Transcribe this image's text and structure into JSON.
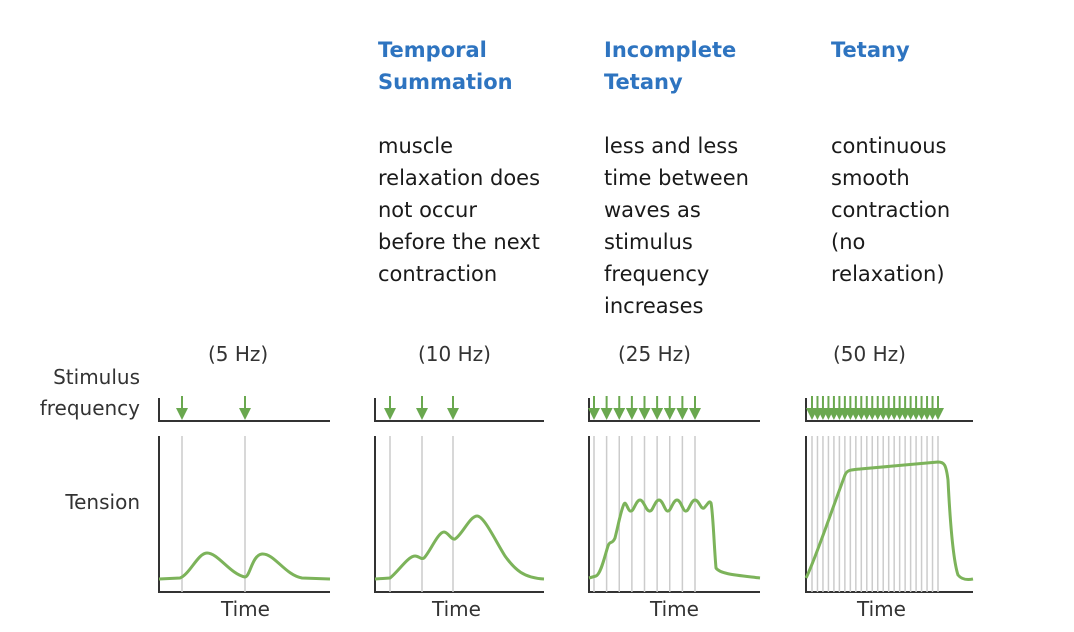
{
  "row_labels": {
    "stimulus_line1": "Stimulus",
    "stimulus_line2": "frequency",
    "tension": "Tension"
  },
  "panels": [
    {
      "heading": "",
      "description": "",
      "frequency": "(5 Hz)",
      "time_label": "Time",
      "stimuli_count": 2
    },
    {
      "heading": "Temporal\nSummation",
      "description": "muscle\nrelaxation does\nnot occur\nbefore the next\ncontraction",
      "frequency": "(10 Hz)",
      "time_label": "Time",
      "stimuli_count": 3
    },
    {
      "heading": "Incomplete\nTetany",
      "description": "less and less\ntime between\nwaves as\nstimulus\nfrequency\nincreases",
      "frequency": "(25 Hz)",
      "time_label": "Time",
      "stimuli_count": 9
    },
    {
      "heading": "Tetany",
      "description": "continuous\nsmooth\ncontraction\n(no\nrelaxation)",
      "frequency": "(50 Hz)",
      "time_label": "Time",
      "stimuli_count": 24
    }
  ],
  "colors": {
    "heading": "#2e74c0",
    "curve": "#7cb35a",
    "arrow": "#6aa84f",
    "gridline": "#cccccc",
    "axis": "#333333"
  }
}
